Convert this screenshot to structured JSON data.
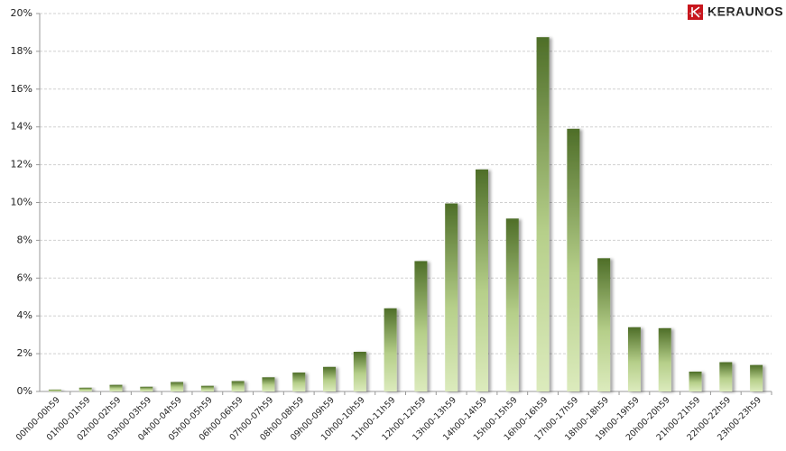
{
  "logo": "KERAUNOS",
  "chart_data": {
    "type": "bar",
    "categories": [
      "00h00-00h59",
      "01h00-01h59",
      "02h00-02h59",
      "03h00-03h59",
      "04h00-04h59",
      "05h00-05h59",
      "06h00-06h59",
      "07h00-07h59",
      "08h00-08h59",
      "09h00-09h59",
      "10h00-10h59",
      "11h00-11h59",
      "12h00-12h59",
      "13h00-13h59",
      "14h00-14h59",
      "15h00-15h59",
      "16h00-16h59",
      "17h00-17h59",
      "18h00-18h59",
      "19h00-19h59",
      "20h00-20h59",
      "21h00-21h59",
      "22h00-22h59",
      "23h00-23h59"
    ],
    "values": [
      0.1,
      0.2,
      0.35,
      0.25,
      0.5,
      0.3,
      0.55,
      0.75,
      1.0,
      1.3,
      2.1,
      4.4,
      6.9,
      9.95,
      11.75,
      9.15,
      18.75,
      13.9,
      7.05,
      3.4,
      3.35,
      1.05,
      1.55,
      1.4
    ],
    "color": "#4e6e28",
    "ylim": [
      0,
      20
    ],
    "yticks": [
      {
        "value": 0,
        "label": "0%"
      },
      {
        "value": 2,
        "label": "2%"
      },
      {
        "value": 4,
        "label": "4%"
      },
      {
        "value": 6,
        "label": "6%"
      },
      {
        "value": 8,
        "label": "8%"
      },
      {
        "value": 10,
        "label": "10%"
      },
      {
        "value": 12,
        "label": "12%"
      },
      {
        "value": 14,
        "label": "14%"
      },
      {
        "value": 16,
        "label": "16%"
      },
      {
        "value": 18,
        "label": "18%"
      },
      {
        "value": 20,
        "label": "20%"
      }
    ],
    "grid": true
  }
}
